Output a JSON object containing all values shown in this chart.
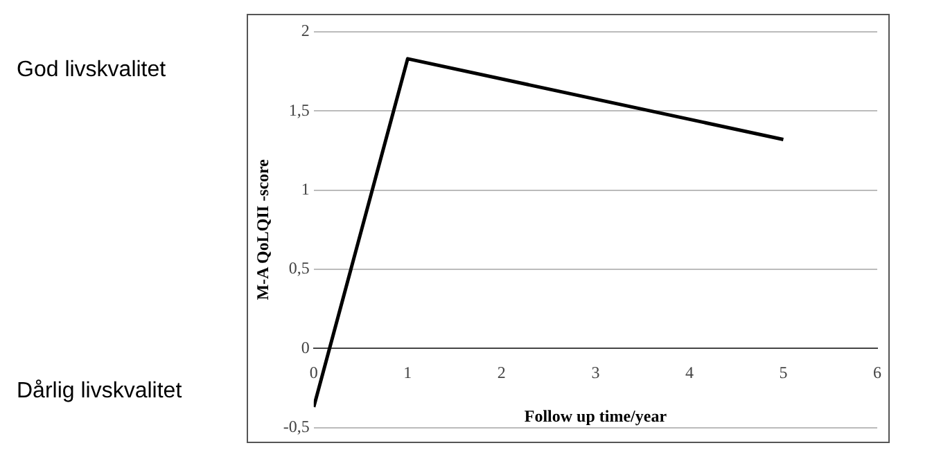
{
  "chart_data": {
    "type": "line",
    "xlabel": "Follow up time/year",
    "ylabel": "M-A QoLQII -score",
    "x": [
      0,
      1,
      5
    ],
    "series": [
      {
        "color": "#000000",
        "values": [
          -0.37,
          1.83,
          1.32
        ]
      }
    ],
    "xlim": [
      0,
      6
    ],
    "xticks": [
      0,
      1,
      2,
      3,
      4,
      5,
      6
    ],
    "ylim": [
      -0.5,
      2
    ],
    "yticks": [
      {
        "value": -0.5,
        "label": "-0,5"
      },
      0,
      {
        "value": 0.5,
        "label": "0,5"
      },
      1,
      {
        "value": 1.5,
        "label": "1,5"
      },
      2
    ],
    "grid": "y",
    "legend": false,
    "marker": "none",
    "line_style": "solid",
    "annotations": [
      "God livskvalitet",
      "Dårlig livskvalitet"
    ]
  }
}
